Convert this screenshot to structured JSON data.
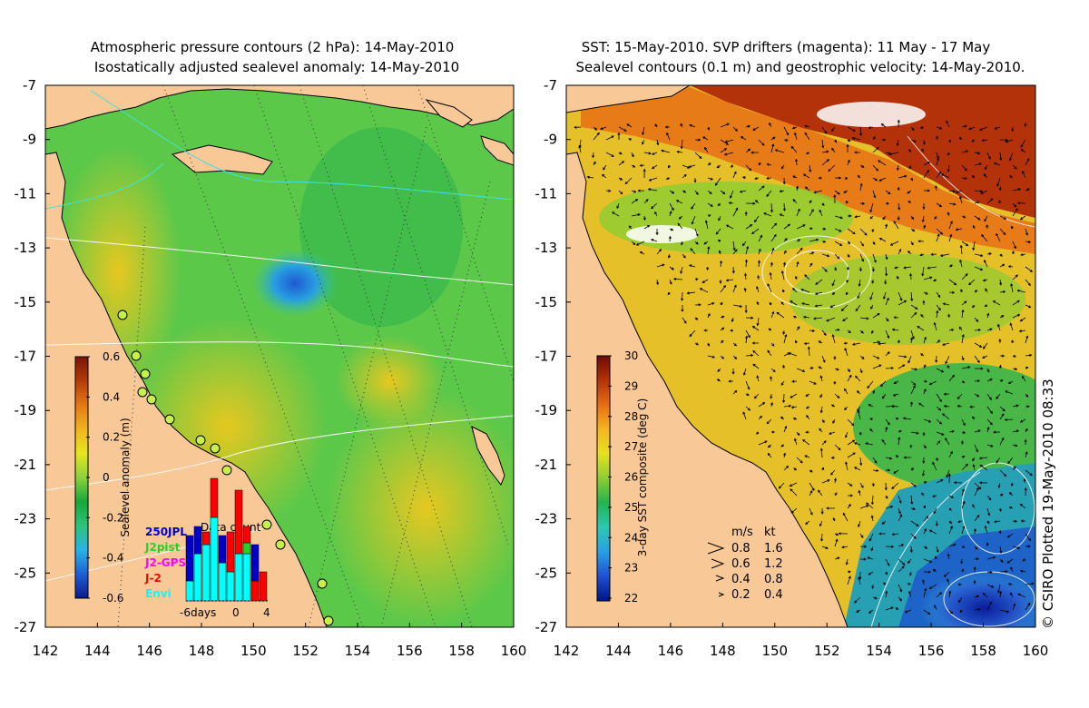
{
  "left_panel": {
    "title_line1": "Atmospheric pressure contours (2 hPa): 14-May-2010",
    "title_line2": "Isostatically adjusted sealevel anomaly: 14-May-2010",
    "colorbar": {
      "label": "Sealevel anomaly (m)",
      "ticks": [
        "0.6",
        "0.4",
        "0.2",
        "0",
        "-0.2",
        "-0.4",
        "-0.6"
      ],
      "colors": [
        "#0a1a8c",
        "#1e5fd6",
        "#28b4e6",
        "#2ec27a",
        "#16a83a",
        "#8cd23c",
        "#e6e61e",
        "#f0b41e",
        "#e67814",
        "#b43c0a",
        "#7a1406"
      ]
    },
    "data_count": {
      "title": "Data count",
      "axis_label": "-6days",
      "x_ticks": [
        "0",
        "4"
      ],
      "legend": [
        {
          "name": "250JPL",
          "color": "#0000c8"
        },
        {
          "name": "J2pist",
          "color": "#28d228"
        },
        {
          "name": "J2-GPS",
          "color": "#ff00ff"
        },
        {
          "name": "J-2",
          "color": "#ff0000"
        },
        {
          "name": "Envi",
          "color": "#00ffff"
        }
      ]
    }
  },
  "right_panel": {
    "title_line1": "SST: 15-May-2010. SVP drifters (magenta): 11 May - 17 May",
    "title_line2": "Sealevel contours (0.1 m) and geostrophic velocity: 14-May-2010.",
    "colorbar": {
      "label": "3-day SST composite (deg C)",
      "ticks": [
        "30",
        "29",
        "28",
        "27",
        "26",
        "25",
        "24",
        "23",
        "22"
      ],
      "colors": [
        "#001488",
        "#1e50d2",
        "#28a0e6",
        "#2cc8b4",
        "#22b450",
        "#8ccd32",
        "#e6e11e",
        "#f5b41e",
        "#e66e14",
        "#b43205",
        "#6e0a05"
      ]
    },
    "velocity_legend": {
      "header_ms": "m/s",
      "header_kt": "kt",
      "rows": [
        {
          "ms": "0.8",
          "kt": "1.6"
        },
        {
          "ms": "0.6",
          "kt": "1.2"
        },
        {
          "ms": "0.4",
          "kt": "0.8"
        },
        {
          "ms": "0.2",
          "kt": "0.4"
        }
      ]
    },
    "credit": "© CSIRO Plotted 19-May-2010 08:33"
  },
  "axes": {
    "y_ticks": [
      "-7",
      "-9",
      "-11",
      "-13",
      "-15",
      "-17",
      "-19",
      "-21",
      "-23",
      "-25",
      "-27"
    ],
    "x_ticks": [
      "142",
      "144",
      "146",
      "148",
      "150",
      "152",
      "154",
      "156",
      "158",
      "160"
    ]
  },
  "colors": {
    "land": "#f8c896",
    "coast": "#000000",
    "sea_base_left": "#5cc84a",
    "sea_base_right": "#e6c028"
  }
}
